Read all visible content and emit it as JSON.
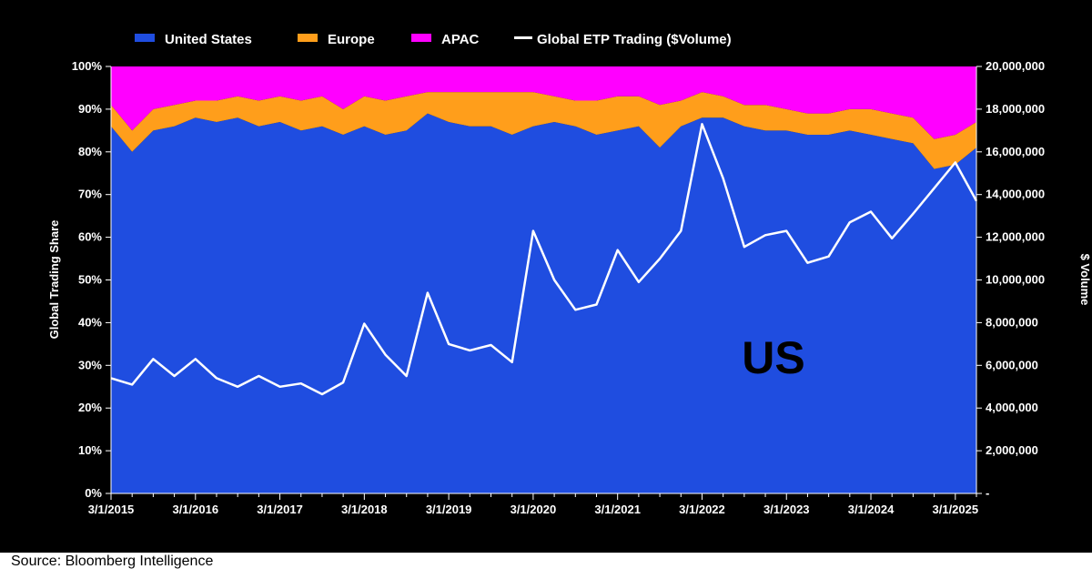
{
  "chart_data": {
    "type": "area",
    "stacked": true,
    "x": [
      "3/1/2015",
      "6/1/2015",
      "9/1/2015",
      "12/1/2015",
      "3/1/2016",
      "6/1/2016",
      "9/1/2016",
      "12/1/2016",
      "3/1/2017",
      "6/1/2017",
      "9/1/2017",
      "12/1/2017",
      "3/1/2018",
      "6/1/2018",
      "9/1/2018",
      "12/1/2018",
      "3/1/2019",
      "6/1/2019",
      "9/1/2019",
      "12/1/2019",
      "3/1/2020",
      "6/1/2020",
      "9/1/2020",
      "12/1/2020",
      "3/1/2021",
      "6/1/2021",
      "9/1/2021",
      "12/1/2021",
      "3/1/2022",
      "6/1/2022",
      "9/1/2022",
      "12/1/2022",
      "3/1/2023",
      "6/1/2023",
      "9/1/2023",
      "12/1/2023",
      "3/1/2024",
      "6/1/2024",
      "9/1/2024",
      "12/1/2024",
      "3/1/2025",
      "6/1/2025"
    ],
    "series": [
      {
        "name": "United States",
        "axis": "left",
        "unit": "%",
        "color": "#1f4de0",
        "values": [
          86,
          80,
          85,
          86,
          88,
          87,
          88,
          86,
          87,
          85,
          86,
          84,
          86,
          84,
          85,
          89,
          87,
          86,
          86,
          84,
          86,
          87,
          86,
          84,
          85,
          86,
          81,
          86,
          88,
          88,
          86,
          85,
          85,
          84,
          84,
          85,
          84,
          83,
          82,
          76,
          77,
          81
        ]
      },
      {
        "name": "Europe",
        "axis": "left",
        "unit": "%",
        "color": "#ff9e1b",
        "values": [
          5,
          5,
          5,
          5,
          4,
          5,
          5,
          6,
          6,
          7,
          7,
          6,
          7,
          8,
          8,
          5,
          7,
          8,
          8,
          10,
          8,
          6,
          6,
          8,
          8,
          7,
          10,
          6,
          6,
          5,
          5,
          6,
          5,
          5,
          5,
          5,
          6,
          6,
          6,
          7,
          7,
          6
        ]
      },
      {
        "name": "APAC",
        "axis": "left",
        "unit": "%",
        "color": "#ff00ff",
        "values": [
          9,
          15,
          10,
          9,
          8,
          8,
          7,
          8,
          7,
          8,
          7,
          10,
          7,
          8,
          7,
          6,
          6,
          6,
          6,
          6,
          6,
          7,
          8,
          8,
          7,
          7,
          9,
          8,
          6,
          7,
          9,
          9,
          10,
          11,
          11,
          10,
          10,
          11,
          12,
          17,
          16,
          13
        ]
      },
      {
        "name": "Global ETP Trading ($Volume)",
        "type": "line",
        "axis": "right",
        "color": "#ffffff",
        "values": [
          5400000,
          5100000,
          6300000,
          5500000,
          6300000,
          5400000,
          5000000,
          5500000,
          5000000,
          5150000,
          4650000,
          5200000,
          7950000,
          6500000,
          5500000,
          9400000,
          7000000,
          6700000,
          6950000,
          6150000,
          12300000,
          10000000,
          8600000,
          8850000,
          11400000,
          9900000,
          11000000,
          12300000,
          17300000,
          14750000,
          11550000,
          12100000,
          12300000,
          10800000,
          11100000,
          12700000,
          13200000,
          11950000,
          13100000,
          14300000,
          15500000,
          13700000
        ]
      }
    ],
    "x_ticks": [
      "3/1/2015",
      "3/1/2016",
      "3/1/2017",
      "3/1/2018",
      "3/1/2019",
      "3/1/2020",
      "3/1/2021",
      "3/1/2022",
      "3/1/2023",
      "3/1/2024",
      "3/1/2025"
    ],
    "left_axis": {
      "label": "Global Trading Share",
      "ylim": [
        0,
        100
      ],
      "tick_labels": [
        "0%",
        "10%",
        "20%",
        "30%",
        "40%",
        "50%",
        "60%",
        "70%",
        "80%",
        "90%",
        "100%"
      ]
    },
    "right_axis": {
      "label": "$ Volume",
      "ylim": [
        0,
        20000000
      ],
      "tick_labels": [
        "-",
        "2,000,000",
        "4,000,000",
        "6,000,000",
        "8,000,000",
        "10,000,000",
        "12,000,000",
        "14,000,000",
        "16,000,000",
        "18,000,000",
        "20,000,000"
      ]
    },
    "legend_position": "top",
    "annotation": "US",
    "grid": false
  },
  "source": "Source: Bloomberg Intelligence"
}
